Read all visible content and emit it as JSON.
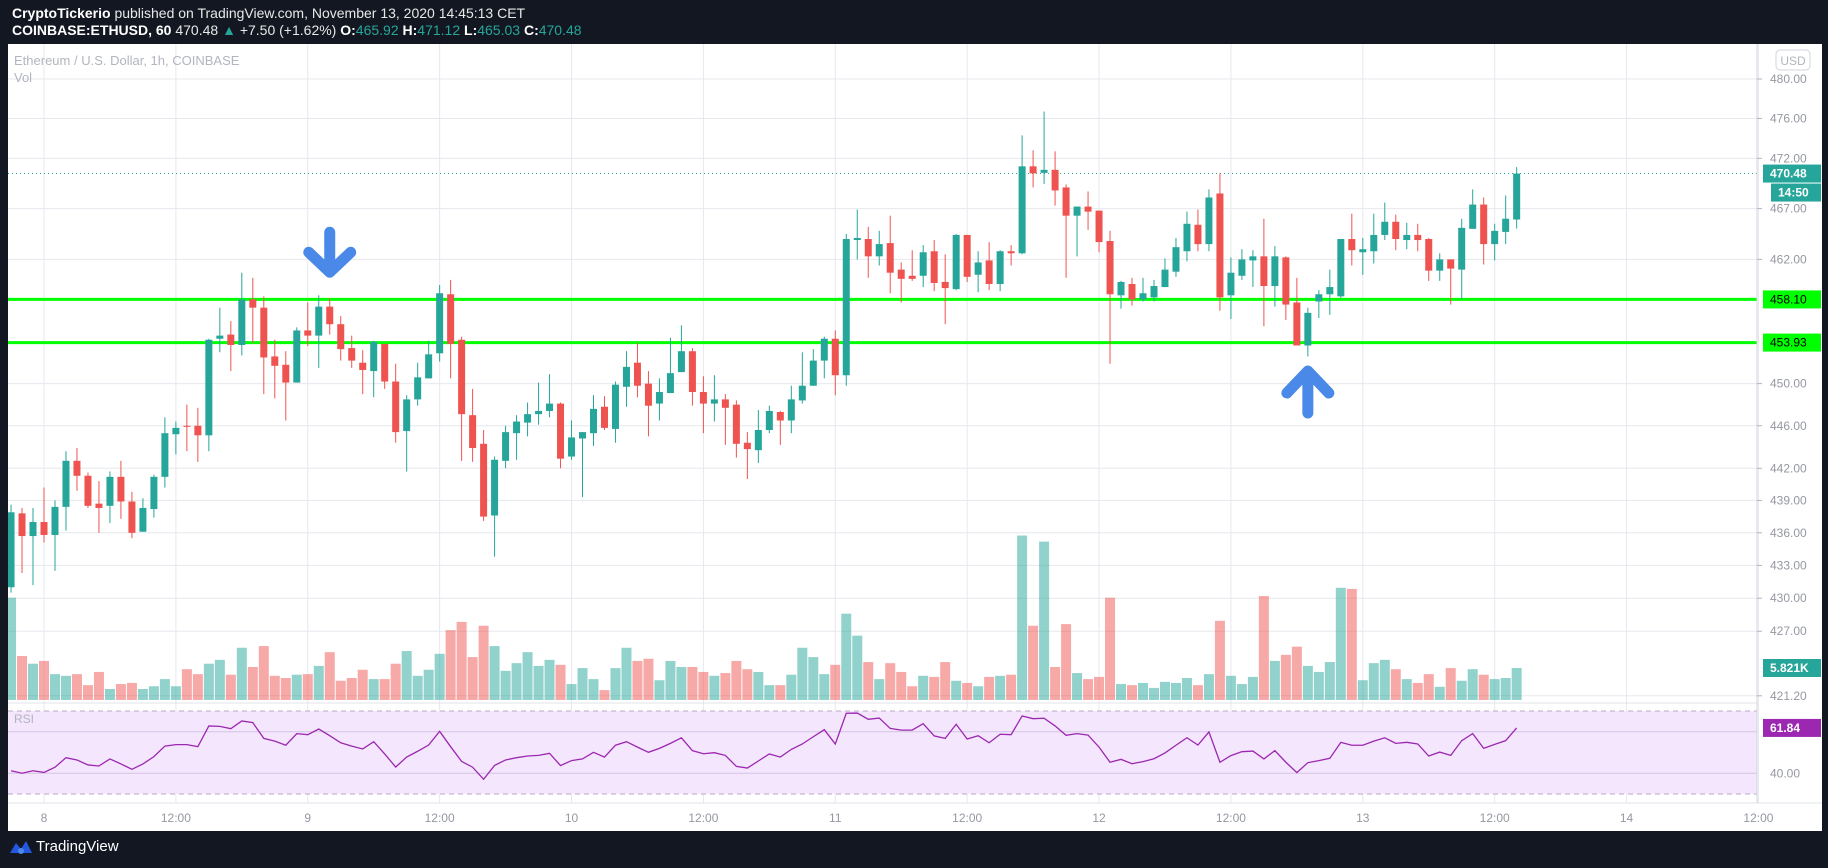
{
  "header": {
    "author": "CryptoTickerio",
    "published": "published on TradingView.com, November 13, 2020 14:45:13 CET",
    "symbol": "COINBASE:ETHUSD, 60",
    "last": "470.48",
    "change": "+7.50 (+1.62%)",
    "change_icon": "triangle-up-icon",
    "o_label": "O:",
    "o": "465.92",
    "h_label": "H:",
    "h": "471.12",
    "l_label": "L:",
    "l": "465.03",
    "c_label": "C:",
    "c": "470.48"
  },
  "legend": {
    "title": "Ethereum / U.S. Dollar, 1h, COINBASE",
    "vol": "Vol",
    "rsi": "RSI"
  },
  "footer": {
    "brand": "TradingView",
    "logo_icon": "tradingview-logo-icon"
  },
  "colors": {
    "up": "#26a69a",
    "down": "#ef5350",
    "level_line": "#00ff00",
    "rsi": "#9c27b0",
    "arrow": "#4a89e8",
    "background": "#131722"
  },
  "chart_data": {
    "type": "candlestick",
    "currency": "USD",
    "y_scale": "log",
    "grid": true,
    "price_ticks": [
      "480.00",
      "476.00",
      "472.00",
      "467.00",
      "462.00",
      "450.00",
      "446.00",
      "442.00",
      "439.00",
      "436.00",
      "433.00",
      "430.00",
      "427.00",
      "421.20"
    ],
    "x_ticks": [
      {
        "label": "8",
        "time": "11-08 00:00"
      },
      {
        "label": "12:00",
        "time": "11-08 12:00"
      },
      {
        "label": "9",
        "time": "11-09 00:00"
      },
      {
        "label": "12:00",
        "time": "11-09 12:00"
      },
      {
        "label": "10",
        "time": "11-10 00:00"
      },
      {
        "label": "12:00",
        "time": "11-10 12:00"
      },
      {
        "label": "11",
        "time": "11-11 00:00"
      },
      {
        "label": "12:00",
        "time": "11-11 12:00"
      },
      {
        "label": "12",
        "time": "11-12 00:00"
      },
      {
        "label": "12:00",
        "time": "11-12 12:00"
      },
      {
        "label": "13",
        "time": "11-13 00:00"
      },
      {
        "label": "12:00",
        "time": "11-13 12:00"
      },
      {
        "label": "14",
        "time": "11-14 00:00"
      },
      {
        "label": "12:00",
        "time": "11-14 12:00"
      }
    ],
    "horizontal_levels": [
      {
        "price": 458.1,
        "label": "458.10"
      },
      {
        "price": 453.93,
        "label": "453.93"
      }
    ],
    "last_price": {
      "price": 470.48,
      "label": "470.48",
      "countdown": "14:50"
    },
    "volume_last_label": "5.821K",
    "rsi_last_label": "61.84",
    "rsi_axis_label": "40.00",
    "rsi_bands": [
      70,
      30
    ],
    "annotations": [
      {
        "type": "arrow-down",
        "time": "11-09 02:00",
        "price": 462.8
      },
      {
        "type": "arrow-up",
        "time": "11-12 19:00",
        "price": 449.2
      }
    ],
    "x": [
      "11-07 21:00",
      "11-07 22:00",
      "11-07 23:00",
      "11-08 00:00",
      "11-08 01:00",
      "11-08 02:00",
      "11-08 03:00",
      "11-08 04:00",
      "11-08 05:00",
      "11-08 06:00",
      "11-08 07:00",
      "11-08 08:00",
      "11-08 09:00",
      "11-08 10:00",
      "11-08 11:00",
      "11-08 12:00",
      "11-08 13:00",
      "11-08 14:00",
      "11-08 15:00",
      "11-08 16:00",
      "11-08 17:00",
      "11-08 18:00",
      "11-08 19:00",
      "11-08 20:00",
      "11-08 21:00",
      "11-08 22:00",
      "11-08 23:00",
      "11-09 00:00",
      "11-09 01:00",
      "11-09 02:00",
      "11-09 03:00",
      "11-09 04:00",
      "11-09 05:00",
      "11-09 06:00",
      "11-09 07:00",
      "11-09 08:00",
      "11-09 09:00",
      "11-09 10:00",
      "11-09 11:00",
      "11-09 12:00",
      "11-09 13:00",
      "11-09 14:00",
      "11-09 15:00",
      "11-09 16:00",
      "11-09 17:00",
      "11-09 18:00",
      "11-09 19:00",
      "11-09 20:00",
      "11-09 21:00",
      "11-09 22:00",
      "11-09 23:00",
      "11-10 00:00",
      "11-10 01:00",
      "11-10 02:00",
      "11-10 03:00",
      "11-10 04:00",
      "11-10 05:00",
      "11-10 06:00",
      "11-10 07:00",
      "11-10 08:00",
      "11-10 09:00",
      "11-10 10:00",
      "11-10 11:00",
      "11-10 12:00",
      "11-10 13:00",
      "11-10 14:00",
      "11-10 15:00",
      "11-10 16:00",
      "11-10 17:00",
      "11-10 18:00",
      "11-10 19:00",
      "11-10 20:00",
      "11-10 21:00",
      "11-10 22:00",
      "11-10 23:00",
      "11-11 00:00",
      "11-11 01:00",
      "11-11 02:00",
      "11-11 03:00",
      "11-11 04:00",
      "11-11 05:00",
      "11-11 06:00",
      "11-11 07:00",
      "11-11 08:00",
      "11-11 09:00",
      "11-11 10:00",
      "11-11 11:00",
      "11-11 12:00",
      "11-11 13:00",
      "11-11 14:00",
      "11-11 15:00",
      "11-11 16:00",
      "11-11 17:00",
      "11-11 18:00",
      "11-11 19:00",
      "11-11 20:00",
      "11-11 21:00",
      "11-11 22:00",
      "11-11 23:00",
      "11-12 00:00",
      "11-12 01:00",
      "11-12 02:00",
      "11-12 03:00",
      "11-12 04:00",
      "11-12 05:00",
      "11-12 06:00",
      "11-12 07:00",
      "11-12 08:00",
      "11-12 09:00",
      "11-12 10:00",
      "11-12 11:00",
      "11-12 12:00",
      "11-12 13:00",
      "11-12 14:00",
      "11-12 15:00",
      "11-12 16:00",
      "11-12 17:00",
      "11-12 18:00",
      "11-12 19:00",
      "11-12 20:00",
      "11-12 21:00",
      "11-12 22:00",
      "11-12 23:00",
      "11-13 00:00",
      "11-13 01:00",
      "11-13 02:00",
      "11-13 03:00",
      "11-13 04:00",
      "11-13 05:00",
      "11-13 06:00",
      "11-13 07:00",
      "11-13 08:00",
      "11-13 09:00",
      "11-13 10:00",
      "11-13 11:00",
      "11-13 12:00",
      "11-13 13:00",
      "11-13 14:00"
    ],
    "ohlc": [
      [
        431.0,
        438.6,
        430.5,
        437.9
      ],
      [
        437.8,
        438.3,
        432.3,
        435.7
      ],
      [
        435.7,
        438.3,
        431.2,
        437.0
      ],
      [
        437.0,
        440.2,
        435.1,
        435.8
      ],
      [
        435.8,
        439.0,
        432.5,
        438.4
      ],
      [
        438.4,
        443.6,
        436.2,
        442.7
      ],
      [
        442.7,
        443.9,
        439.9,
        441.3
      ],
      [
        441.3,
        441.6,
        438.3,
        438.5
      ],
      [
        438.7,
        440.8,
        436.0,
        438.3
      ],
      [
        438.5,
        441.7,
        436.9,
        441.2
      ],
      [
        441.2,
        442.7,
        437.3,
        438.9
      ],
      [
        438.9,
        439.8,
        435.5,
        436.0
      ],
      [
        436.1,
        439.2,
        436.1,
        438.3
      ],
      [
        438.2,
        441.4,
        437.4,
        441.2
      ],
      [
        441.2,
        446.8,
        440.2,
        445.3
      ],
      [
        445.2,
        446.4,
        443.3,
        445.8
      ],
      [
        446.0,
        448.0,
        443.6,
        445.9
      ],
      [
        446.0,
        447.7,
        442.6,
        445.1
      ],
      [
        445.1,
        454.3,
        443.6,
        454.2
      ],
      [
        454.3,
        457.3,
        453.0,
        454.6
      ],
      [
        454.7,
        456.0,
        451.2,
        453.7
      ],
      [
        453.7,
        460.7,
        452.7,
        458.1
      ],
      [
        458.1,
        460.2,
        453.9,
        457.3
      ],
      [
        457.3,
        458.4,
        449.0,
        452.5
      ],
      [
        452.6,
        454.2,
        448.6,
        451.7
      ],
      [
        451.8,
        453.1,
        446.5,
        450.1
      ],
      [
        450.1,
        455.4,
        450.1,
        455.1
      ],
      [
        455.1,
        457.8,
        453.6,
        454.6
      ],
      [
        454.6,
        458.5,
        451.5,
        457.4
      ],
      [
        457.4,
        458.2,
        454.7,
        455.7
      ],
      [
        455.7,
        456.5,
        452.2,
        453.3
      ],
      [
        453.4,
        454.6,
        451.5,
        452.2
      ],
      [
        452.0,
        453.2,
        449.0,
        451.3
      ],
      [
        451.2,
        454.1,
        448.7,
        454.0
      ],
      [
        453.8,
        453.8,
        449.5,
        450.2
      ],
      [
        450.2,
        451.9,
        444.4,
        445.4
      ],
      [
        445.5,
        448.9,
        441.7,
        448.5
      ],
      [
        448.5,
        452.0,
        447.9,
        450.6
      ],
      [
        450.5,
        454.1,
        450.5,
        452.8
      ],
      [
        452.9,
        459.5,
        452.1,
        458.7
      ],
      [
        458.6,
        460.0,
        450.5,
        453.8
      ],
      [
        454.2,
        454.5,
        442.7,
        447.1
      ],
      [
        447.0,
        449.5,
        442.6,
        443.9
      ],
      [
        444.3,
        445.6,
        437.1,
        437.5
      ],
      [
        437.6,
        443.1,
        433.8,
        442.8
      ],
      [
        442.7,
        446.0,
        442.0,
        445.4
      ],
      [
        445.3,
        447.0,
        442.8,
        446.4
      ],
      [
        446.3,
        448.2,
        445.0,
        447.1
      ],
      [
        447.1,
        450.1,
        446.1,
        447.4
      ],
      [
        447.4,
        450.9,
        446.8,
        448.1
      ],
      [
        448.1,
        448.2,
        442.0,
        442.9
      ],
      [
        443.1,
        446.5,
        442.8,
        444.9
      ],
      [
        444.8,
        445.4,
        439.3,
        445.4
      ],
      [
        445.3,
        448.9,
        444.1,
        447.6
      ],
      [
        447.8,
        448.8,
        445.6,
        445.8
      ],
      [
        445.7,
        450.2,
        444.4,
        449.9
      ],
      [
        449.7,
        453.1,
        447.8,
        451.6
      ],
      [
        452.0,
        453.9,
        448.7,
        449.8
      ],
      [
        450.0,
        451.2,
        445.0,
        447.9
      ],
      [
        448.1,
        450.5,
        446.5,
        449.2
      ],
      [
        449.1,
        454.4,
        449.1,
        451.0
      ],
      [
        451.1,
        455.6,
        451.1,
        453.1
      ],
      [
        453.1,
        453.4,
        447.9,
        449.2
      ],
      [
        449.2,
        450.7,
        445.3,
        448.1
      ],
      [
        448.1,
        450.8,
        446.4,
        448.5
      ],
      [
        448.5,
        449.0,
        444.2,
        447.7
      ],
      [
        448.0,
        448.4,
        443.0,
        444.3
      ],
      [
        444.4,
        445.4,
        441.0,
        443.8
      ],
      [
        443.7,
        447.5,
        442.5,
        445.6
      ],
      [
        445.6,
        447.9,
        445.3,
        447.4
      ],
      [
        447.3,
        447.4,
        444.2,
        446.5
      ],
      [
        446.5,
        449.8,
        445.3,
        448.5
      ],
      [
        448.4,
        453.0,
        448.1,
        449.8
      ],
      [
        449.8,
        453.3,
        449.8,
        452.2
      ],
      [
        452.2,
        454.5,
        450.5,
        454.3
      ],
      [
        454.3,
        455.1,
        448.9,
        450.8
      ],
      [
        450.8,
        464.5,
        449.8,
        464.0
      ],
      [
        463.9,
        466.9,
        462.0,
        464.1
      ],
      [
        464.0,
        465.2,
        460.2,
        462.3
      ],
      [
        462.3,
        464.8,
        461.4,
        463.5
      ],
      [
        463.6,
        466.3,
        458.7,
        460.7
      ],
      [
        461.0,
        461.7,
        457.8,
        460.1
      ],
      [
        460.4,
        462.9,
        459.9,
        460.1
      ],
      [
        460.4,
        463.4,
        459.3,
        462.7
      ],
      [
        462.8,
        463.9,
        458.9,
        459.7
      ],
      [
        459.8,
        462.5,
        455.7,
        459.2
      ],
      [
        459.1,
        464.5,
        459.0,
        464.4
      ],
      [
        464.4,
        464.4,
        459.8,
        460.3
      ],
      [
        460.5,
        462.8,
        458.8,
        461.7
      ],
      [
        461.9,
        463.7,
        459.0,
        459.6
      ],
      [
        459.6,
        462.9,
        458.9,
        462.8
      ],
      [
        462.8,
        463.4,
        461.4,
        462.6
      ],
      [
        462.6,
        474.3,
        462.5,
        471.2
      ],
      [
        471.2,
        472.8,
        469.1,
        470.5
      ],
      [
        470.55,
        476.7,
        469.45,
        470.85
      ],
      [
        470.85,
        472.7,
        467.3,
        468.8
      ],
      [
        469.1,
        469.4,
        460.2,
        466.3
      ],
      [
        466.3,
        467.2,
        462.3,
        467.2
      ],
      [
        467.2,
        468.7,
        464.9,
        466.7
      ],
      [
        466.8,
        466.8,
        462.7,
        463.7
      ],
      [
        463.8,
        464.8,
        451.9,
        458.6
      ],
      [
        458.5,
        459.9,
        457.2,
        459.8
      ],
      [
        459.6,
        460.2,
        457.5,
        458.1
      ],
      [
        458.1,
        460.2,
        457.9,
        458.7
      ],
      [
        458.3,
        460.0,
        457.9,
        459.4
      ],
      [
        459.3,
        462.1,
        459.3,
        461.0
      ],
      [
        460.8,
        464.1,
        460.3,
        463.2
      ],
      [
        462.8,
        466.7,
        461.8,
        465.5
      ],
      [
        465.4,
        466.9,
        462.8,
        463.5
      ],
      [
        463.5,
        468.9,
        462.8,
        468.1
      ],
      [
        468.5,
        470.5,
        457.0,
        458.3
      ],
      [
        458.5,
        462.2,
        456.2,
        460.7
      ],
      [
        460.4,
        463.0,
        460.0,
        462.0
      ],
      [
        461.9,
        462.9,
        459.3,
        462.3
      ],
      [
        462.3,
        466.0,
        455.5,
        459.4
      ],
      [
        459.4,
        463.3,
        457.4,
        462.3
      ],
      [
        462.2,
        462.3,
        456.1,
        457.6
      ],
      [
        457.8,
        460.2,
        453.65,
        453.65
      ],
      [
        453.65,
        457.3,
        452.6,
        456.8
      ],
      [
        457.9,
        459.0,
        456.3,
        458.6
      ],
      [
        458.6,
        461.0,
        456.6,
        459.3
      ],
      [
        458.4,
        464.0,
        458.2,
        464.0
      ],
      [
        464.0,
        466.5,
        461.4,
        462.9
      ],
      [
        462.7,
        464.1,
        460.5,
        463.0
      ],
      [
        462.8,
        466.5,
        461.6,
        464.4
      ],
      [
        464.4,
        467.6,
        463.9,
        465.7
      ],
      [
        465.7,
        466.4,
        462.9,
        464.0
      ],
      [
        463.9,
        465.6,
        463.0,
        464.4
      ],
      [
        464.4,
        465.5,
        462.8,
        463.9
      ],
      [
        464.0,
        464.1,
        459.9,
        460.9
      ],
      [
        460.9,
        462.6,
        459.9,
        462.0
      ],
      [
        462.0,
        462.0,
        457.6,
        461.1
      ],
      [
        461.0,
        466.0,
        458.1,
        465.1
      ],
      [
        465.0,
        468.9,
        465.0,
        467.4
      ],
      [
        467.4,
        468.1,
        461.5,
        463.5
      ],
      [
        463.5,
        465.5,
        461.9,
        464.8
      ],
      [
        464.7,
        468.3,
        463.5,
        466.0
      ],
      [
        465.92,
        471.12,
        465.03,
        470.48
      ]
    ],
    "volume_k": [
      18.6,
      8.0,
      6.6,
      7.1,
      4.7,
      4.4,
      4.7,
      2.7,
      5.1,
      2.0,
      2.9,
      3.1,
      2.0,
      2.5,
      3.8,
      2.5,
      5.6,
      4.7,
      6.6,
      7.3,
      4.6,
      9.5,
      6.0,
      9.8,
      4.4,
      4.0,
      4.6,
      4.7,
      6.2,
      8.7,
      3.5,
      4.0,
      5.5,
      3.8,
      3.8,
      6.6,
      8.9,
      4.4,
      5.5,
      8.4,
      12.7,
      14.2,
      7.8,
      13.5,
      9.8,
      5.3,
      6.7,
      8.7,
      6.2,
      7.3,
      6.4,
      2.9,
      5.8,
      3.8,
      1.8,
      5.8,
      9.5,
      7.1,
      7.5,
      3.6,
      7.1,
      6.0,
      6.0,
      5.1,
      4.4,
      4.9,
      7.1,
      5.6,
      5.1,
      2.7,
      2.7,
      4.6,
      9.5,
      7.8,
      4.7,
      6.4,
      15.7,
      11.7,
      6.9,
      3.8,
      6.7,
      5.1,
      2.5,
      4.4,
      4.2,
      6.9,
      3.5,
      3.1,
      2.5,
      4.2,
      4.4,
      4.6,
      29.9,
      13.5,
      28.8,
      6.0,
      13.8,
      4.9,
      3.8,
      4.2,
      18.6,
      2.9,
      2.7,
      3.1,
      2.2,
      3.3,
      3.1,
      4.0,
      2.7,
      4.7,
      14.4,
      4.4,
      2.9,
      4.2,
      18.9,
      7.1,
      8.2,
      9.7,
      6.2,
      5.1,
      6.9,
      20.4,
      20.2,
      3.6,
      6.7,
      7.3,
      5.6,
      3.8,
      3.1,
      4.7,
      2.4,
      5.8,
      3.5,
      5.6,
      4.6,
      3.8,
      4.0,
      5.821
    ],
    "rsi": [
      41.2,
      40.0,
      41.2,
      40.4,
      42.9,
      47.5,
      46.4,
      44.0,
      43.5,
      46.9,
      44.5,
      41.9,
      44.5,
      48.0,
      53.1,
      53.8,
      53.8,
      52.8,
      62.8,
      62.6,
      61.5,
      65.2,
      64.4,
      56.8,
      55.5,
      53.5,
      59.1,
      58.6,
      61.3,
      58.1,
      54.7,
      53.1,
      51.7,
      55.2,
      49.3,
      43.0,
      47.8,
      50.6,
      53.6,
      60.2,
      52.8,
      45.7,
      42.9,
      37.1,
      43.8,
      46.4,
      47.5,
      48.3,
      48.6,
      49.6,
      43.7,
      46.1,
      46.9,
      50.1,
      47.8,
      53.5,
      55.2,
      52.6,
      50.1,
      52.0,
      54.4,
      57.1,
      50.9,
      49.4,
      49.9,
      48.6,
      43.3,
      42.5,
      45.9,
      49.3,
      47.8,
      51.5,
      54.1,
      57.6,
      61.0,
      54.1,
      68.9,
      69.0,
      66.0,
      66.6,
      61.6,
      60.8,
      60.8,
      63.9,
      58.0,
      56.8,
      63.6,
      56.5,
      58.1,
      54.7,
      58.8,
      58.6,
      67.6,
      66.3,
      66.5,
      62.8,
      58.3,
      59.1,
      58.4,
      52.6,
      45.3,
      46.7,
      44.6,
      45.6,
      47.0,
      49.8,
      53.5,
      57.1,
      53.6,
      59.9,
      45.3,
      48.5,
      50.4,
      50.7,
      46.9,
      50.9,
      45.3,
      40.3,
      45.1,
      46.1,
      47.2,
      54.9,
      53.5,
      53.5,
      55.5,
      57.1,
      54.4,
      54.9,
      54.1,
      48.3,
      50.2,
      48.6,
      55.7,
      59.1,
      52.0,
      53.9,
      55.7,
      61.84
    ]
  }
}
